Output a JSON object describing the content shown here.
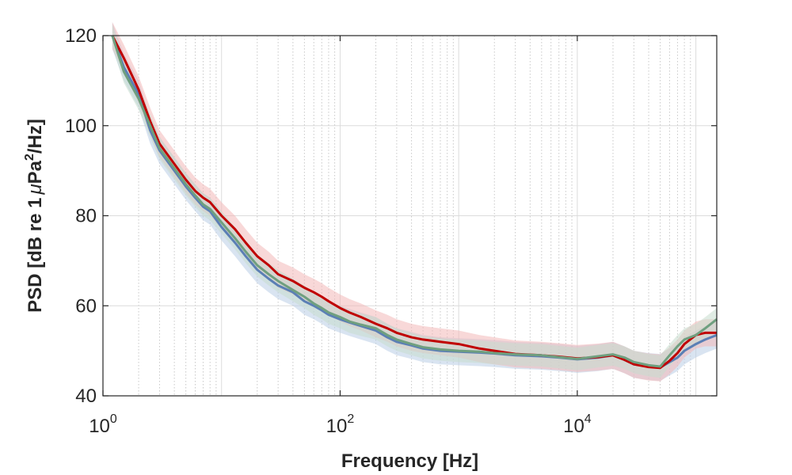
{
  "chart_data": {
    "type": "line",
    "xlabel": "Frequency [Hz]",
    "ylabel": "PSD [dB re 1",
    "ylabel_mu": "μ",
    "ylabel_unit": "Pa",
    "ylabel_sup": "2",
    "ylabel_tail": "/Hz]",
    "x_scale": "log",
    "xlim": [
      1,
      150000
    ],
    "ylim": [
      40,
      120
    ],
    "y_ticks": [
      "40",
      "60",
      "80",
      "100",
      "120"
    ],
    "x_ticks": [
      {
        "base": "10",
        "exp": "0",
        "value": 1
      },
      {
        "base": "10",
        "exp": "2",
        "value": 100
      },
      {
        "base": "10",
        "exp": "4",
        "value": 10000
      }
    ],
    "grid": true,
    "series": [
      {
        "color": "#5b7fb5",
        "band_color": "#b9cde6",
        "band_width": 3.0,
        "points": [
          [
            1.2,
            120
          ],
          [
            1.5,
            113
          ],
          [
            2,
            107
          ],
          [
            2.5,
            99
          ],
          [
            3,
            94.5
          ],
          [
            4,
            90
          ],
          [
            5,
            86.5
          ],
          [
            6,
            84
          ],
          [
            7,
            82
          ],
          [
            8,
            81
          ],
          [
            10,
            77.5
          ],
          [
            13,
            74
          ],
          [
            16,
            71
          ],
          [
            20,
            68
          ],
          [
            25,
            66
          ],
          [
            30,
            64.5
          ],
          [
            40,
            63
          ],
          [
            50,
            61
          ],
          [
            60,
            60
          ],
          [
            70,
            59
          ],
          [
            80,
            58
          ],
          [
            100,
            57
          ],
          [
            120,
            56.3
          ],
          [
            150,
            55.5
          ],
          [
            200,
            54.5
          ],
          [
            250,
            53
          ],
          [
            300,
            52
          ],
          [
            400,
            51.2
          ],
          [
            500,
            50.5
          ],
          [
            700,
            50
          ],
          [
            1000,
            49.8
          ],
          [
            1500,
            49.6
          ],
          [
            2000,
            49.4
          ],
          [
            3000,
            49
          ],
          [
            5000,
            48.8
          ],
          [
            7000,
            48.5
          ],
          [
            10000,
            48.1
          ],
          [
            15000,
            48.5
          ],
          [
            20000,
            49
          ],
          [
            25000,
            48
          ],
          [
            30000,
            47
          ],
          [
            40000,
            46.5
          ],
          [
            50000,
            46.3
          ],
          [
            60000,
            47.5
          ],
          [
            70000,
            48.5
          ],
          [
            80000,
            50
          ],
          [
            100000,
            51.5
          ],
          [
            120000,
            52.5
          ],
          [
            150000,
            53.5
          ]
        ]
      },
      {
        "color": "#c00000",
        "band_color": "#f2b8b8",
        "band_width": 3.0,
        "points": [
          [
            1.2,
            120
          ],
          [
            1.5,
            115
          ],
          [
            2,
            108
          ],
          [
            2.5,
            101
          ],
          [
            3,
            96
          ],
          [
            4,
            91.5
          ],
          [
            5,
            88
          ],
          [
            6,
            85.5
          ],
          [
            7,
            84
          ],
          [
            8,
            83
          ],
          [
            10,
            80
          ],
          [
            13,
            77
          ],
          [
            16,
            74
          ],
          [
            20,
            71
          ],
          [
            25,
            69
          ],
          [
            30,
            67
          ],
          [
            40,
            65.5
          ],
          [
            50,
            64
          ],
          [
            60,
            63
          ],
          [
            70,
            62
          ],
          [
            80,
            61
          ],
          [
            100,
            59.5
          ],
          [
            120,
            58.5
          ],
          [
            150,
            57.5
          ],
          [
            200,
            56
          ],
          [
            250,
            55
          ],
          [
            300,
            54
          ],
          [
            400,
            53
          ],
          [
            500,
            52.5
          ],
          [
            700,
            52
          ],
          [
            1000,
            51.5
          ],
          [
            1500,
            50.5
          ],
          [
            2000,
            50
          ],
          [
            3000,
            49.3
          ],
          [
            5000,
            49
          ],
          [
            7000,
            48.7
          ],
          [
            10000,
            48.3
          ],
          [
            15000,
            48.6
          ],
          [
            20000,
            49
          ],
          [
            25000,
            48
          ],
          [
            30000,
            47
          ],
          [
            40000,
            46.4
          ],
          [
            50000,
            46.2
          ],
          [
            60000,
            47.8
          ],
          [
            70000,
            49.5
          ],
          [
            80000,
            51.5
          ],
          [
            100000,
            53.5
          ],
          [
            120000,
            54
          ],
          [
            150000,
            54
          ]
        ]
      },
      {
        "color": "#6f9f7f",
        "band_color": "#c7dccd",
        "band_width": 2.5,
        "points": [
          [
            1.2,
            120
          ],
          [
            1.5,
            112
          ],
          [
            2,
            106
          ],
          [
            2.5,
            100
          ],
          [
            3,
            95
          ],
          [
            4,
            90.5
          ],
          [
            5,
            87
          ],
          [
            6,
            84.5
          ],
          [
            7,
            82.5
          ],
          [
            8,
            81.5
          ],
          [
            10,
            78.5
          ],
          [
            13,
            75
          ],
          [
            16,
            72
          ],
          [
            20,
            69
          ],
          [
            25,
            67
          ],
          [
            30,
            65.5
          ],
          [
            40,
            63.5
          ],
          [
            50,
            62
          ],
          [
            60,
            60.5
          ],
          [
            70,
            59.5
          ],
          [
            80,
            58.5
          ],
          [
            100,
            57.5
          ],
          [
            120,
            56.5
          ],
          [
            150,
            55.8
          ],
          [
            200,
            55
          ],
          [
            250,
            53.5
          ],
          [
            300,
            52.5
          ],
          [
            400,
            51.5
          ],
          [
            500,
            50.8
          ],
          [
            700,
            50.3
          ],
          [
            1000,
            50
          ],
          [
            1500,
            49.8
          ],
          [
            2000,
            49.5
          ],
          [
            3000,
            49.2
          ],
          [
            5000,
            49
          ],
          [
            7000,
            48.6
          ],
          [
            10000,
            48.2
          ],
          [
            15000,
            48.8
          ],
          [
            20000,
            49.2
          ],
          [
            25000,
            48.5
          ],
          [
            30000,
            47.5
          ],
          [
            40000,
            46.8
          ],
          [
            50000,
            46.5
          ],
          [
            60000,
            49
          ],
          [
            70000,
            51
          ],
          [
            80000,
            52.5
          ],
          [
            100000,
            53.5
          ],
          [
            120000,
            55
          ],
          [
            150000,
            57
          ]
        ]
      }
    ]
  }
}
